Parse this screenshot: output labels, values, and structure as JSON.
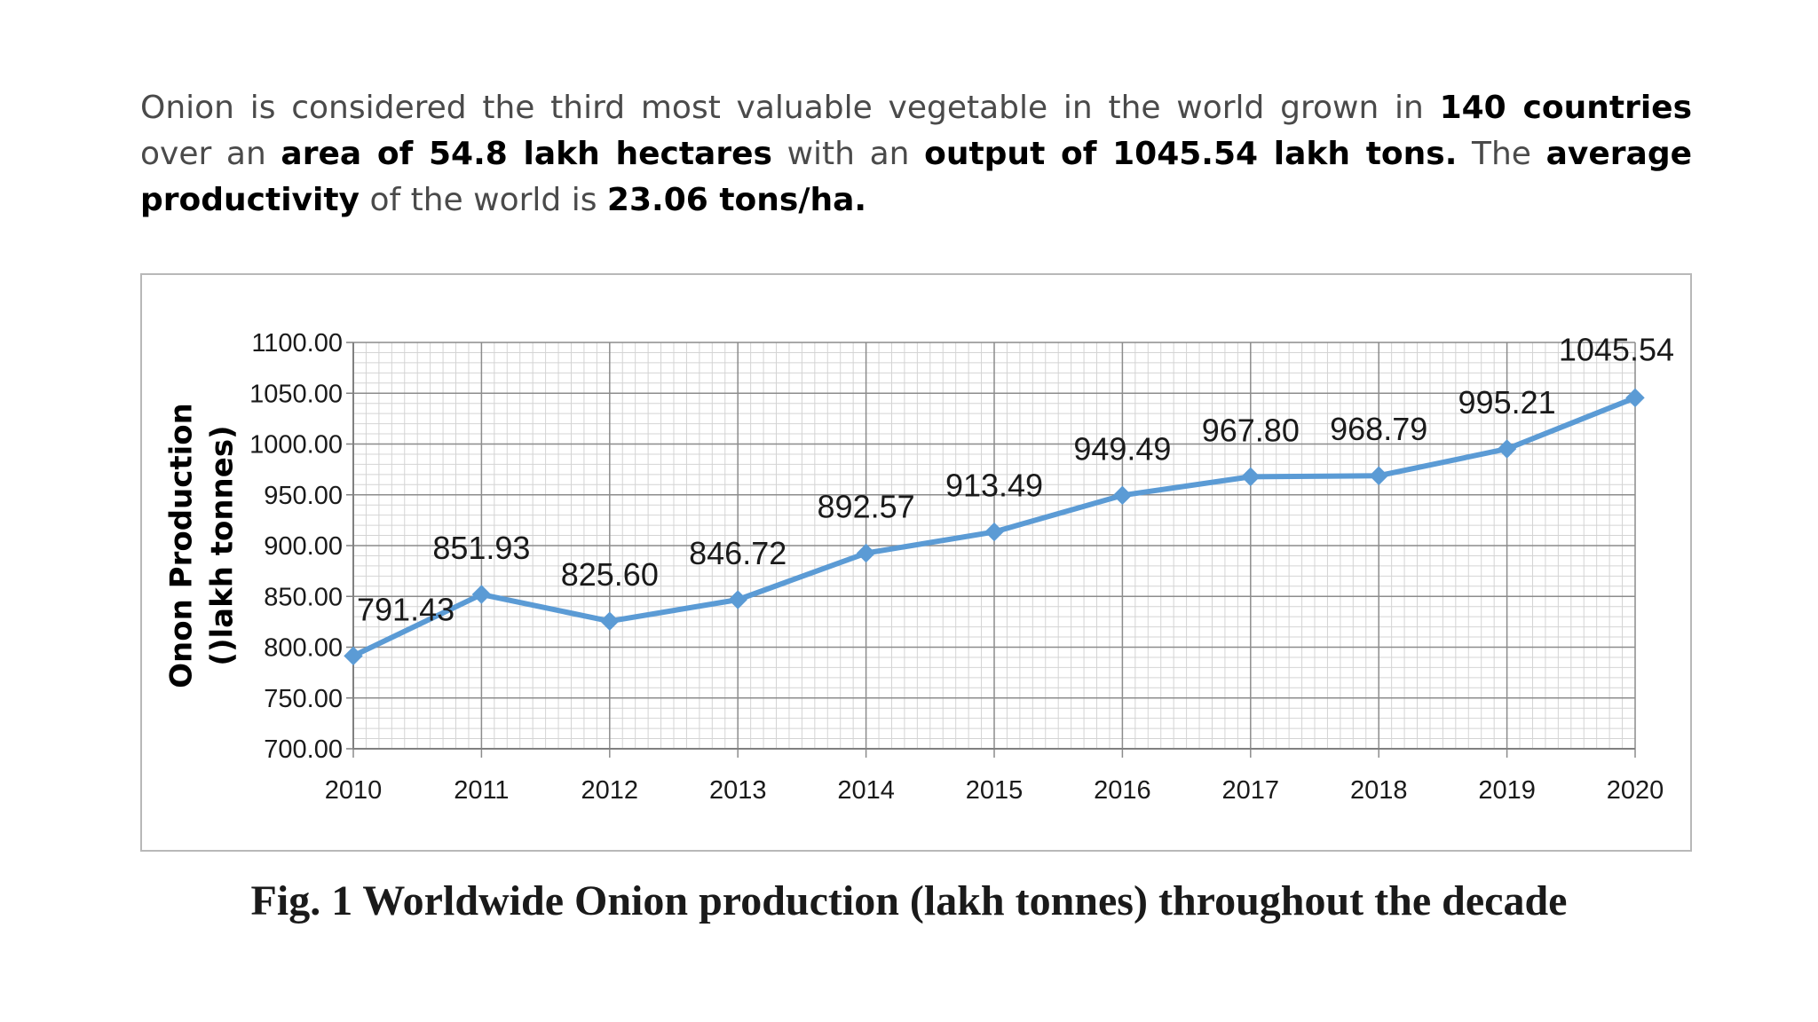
{
  "intro": {
    "parts": [
      {
        "text": "Onion is considered the third most valuable vegetable in the world grown in ",
        "bold": false
      },
      {
        "text": "140 countries",
        "bold": true
      },
      {
        "text": " over an ",
        "bold": false
      },
      {
        "text": "area of 54.8 lakh hectares",
        "bold": true
      },
      {
        "text": " with an ",
        "bold": false
      },
      {
        "text": "output of 1045.54 lakh tons.",
        "bold": true
      },
      {
        "text": " The ",
        "bold": false
      },
      {
        "text": "average productivity",
        "bold": true
      },
      {
        "text": " of the world is ",
        "bold": false
      },
      {
        "text": "23.06 tons/ha.",
        "bold": true
      }
    ]
  },
  "caption": "Fig. 1 Worldwide Onion production (lakh tonnes) throughout the decade",
  "chart_data": {
    "type": "line",
    "ylabel_lines": [
      "Onon Production",
      "()lakh tonnes)"
    ],
    "xlabel": "",
    "categories": [
      "2010",
      "2011",
      "2012",
      "2013",
      "2014",
      "2015",
      "2016",
      "2017",
      "2018",
      "2019",
      "2020"
    ],
    "series": [
      {
        "values": [
          791.43,
          851.93,
          825.6,
          846.72,
          892.57,
          913.49,
          949.49,
          967.8,
          968.79,
          995.21,
          1045.54
        ],
        "labels": [
          "791.43",
          "851.93",
          "825.60",
          "846.72",
          "892.57",
          "913.49",
          "949.49",
          "967.80",
          "968.79",
          "995.21",
          "1045.54"
        ],
        "color": "#5b9bd5"
      }
    ],
    "y_ticks": [
      "700.00",
      "750.00",
      "800.00",
      "850.00",
      "900.00",
      "950.00",
      "1000.00",
      "1050.00",
      "1100.00"
    ],
    "ylim": [
      700,
      1100
    ],
    "grid": true,
    "marker": "diamond"
  }
}
